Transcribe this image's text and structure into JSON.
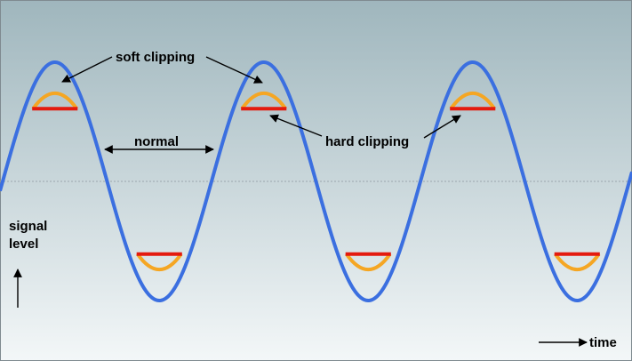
{
  "labels": {
    "soft_clipping": "soft clipping",
    "hard_clipping": "hard clipping",
    "normal": "normal",
    "signal": "signal",
    "level": "level",
    "time": "time"
  },
  "colors": {
    "background_top": "#9fb6bd",
    "background_bottom": "#f3f7f8",
    "sine": "#3b6fe0",
    "soft_clip": "#f5a623",
    "hard_clip": "#e41a0e",
    "baseline": "#9aa4ad",
    "arrow": "#000000"
  },
  "waveform": {
    "cycles_shown": 3,
    "soft_clip_level": 0.74,
    "hard_clip_level": 0.61
  }
}
